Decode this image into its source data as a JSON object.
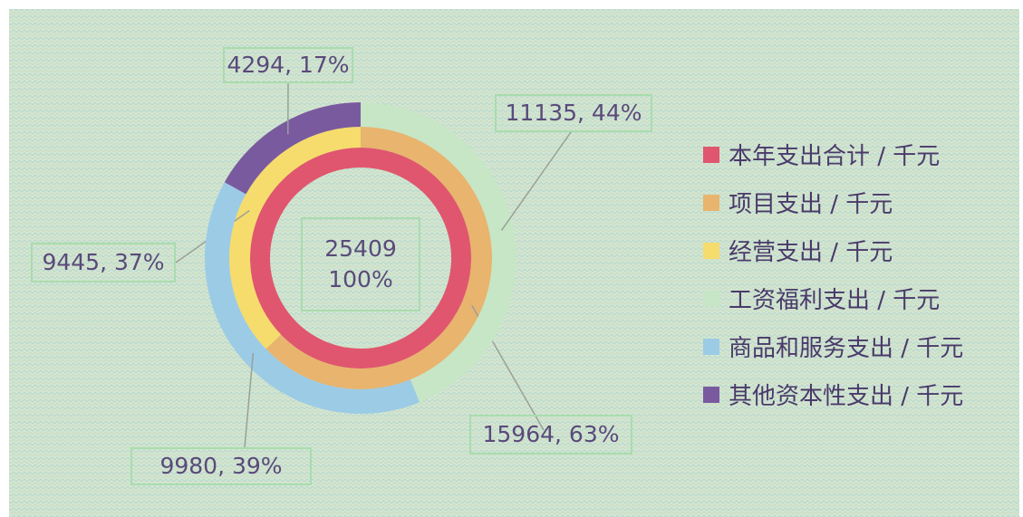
{
  "chart_data": {
    "type": "sunburst",
    "rings": [
      {
        "categories": [
          "本年支出合计 / 千元"
        ],
        "values": [
          25409
        ],
        "value_labels": [
          "25409\n100%"
        ],
        "colors": [
          "#e0566e"
        ]
      },
      {
        "categories": [
          "项目支出 / 千元",
          "经营支出 / 千元"
        ],
        "values": [
          15964,
          9445
        ],
        "value_labels": [
          "15964, 63%",
          "9445, 37%"
        ],
        "colors": [
          "#e8b46e",
          "#f6dc6c"
        ]
      },
      {
        "categories": [
          "工资福利支出 / 千元",
          "商品和服务支出 / 千元",
          "其他资本性支出 / 千元"
        ],
        "values": [
          11135,
          9980,
          4294
        ],
        "value_labels": [
          "11135, 44%",
          "9980, 39%",
          "4294, 17%"
        ],
        "colors": [
          "#c6e6c6",
          "#9ccbe6",
          "#7a5a9e"
        ]
      }
    ]
  }
}
